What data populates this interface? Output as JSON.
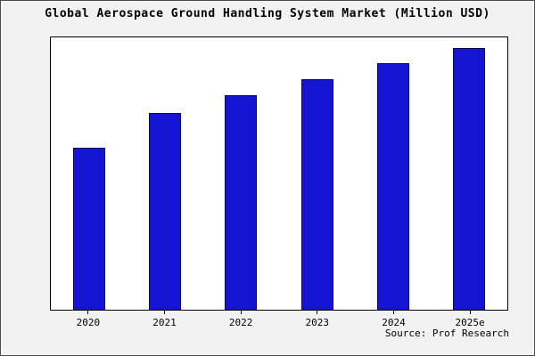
{
  "page": {
    "title": "Global Aerospace Ground Handling System Market (Million USD)",
    "source": "Source: Prof Research"
  },
  "chart_data": {
    "type": "bar",
    "title": "Global Aerospace Ground Handling System Market (Million USD)",
    "categories": [
      "2020",
      "2021",
      "2022",
      "2023",
      "2024",
      "2025e"
    ],
    "values": [
      62,
      75,
      82,
      88,
      94,
      100
    ],
    "xlabel": "",
    "ylabel": "",
    "ylim": [
      0,
      104
    ],
    "y_axis_labels_visible": false,
    "grid": false,
    "legend_position": "none",
    "bar_color": "#1414d2",
    "bar_edge_color": "#000066",
    "plot_background": "#ffffff",
    "figure_background": "#f2f2f2",
    "source_annotation": "Source: Prof Research"
  }
}
